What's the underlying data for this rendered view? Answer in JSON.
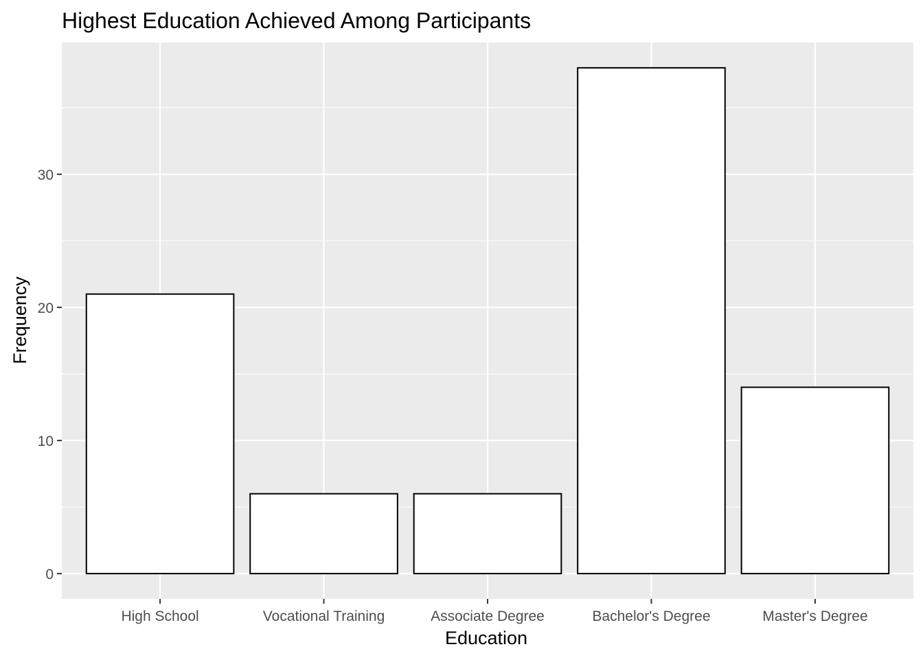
{
  "chart_data": {
    "type": "bar",
    "title": "Highest Education Achieved Among Participants",
    "xlabel": "Education",
    "ylabel": "Frequency",
    "categories": [
      "High School",
      "Vocational Training",
      "Associate Degree",
      "Bachelor's Degree",
      "Master's Degree"
    ],
    "values": [
      21,
      6,
      6,
      38,
      14
    ],
    "ylim": [
      -1.9,
      39.9
    ],
    "yticks": [
      0,
      10,
      20,
      30
    ],
    "grid": true,
    "legend": "none",
    "colors": {
      "panel_background": "#ebebeb",
      "grid": "#ffffff",
      "bar_fill": "#ffffff",
      "bar_outline": "#000000",
      "tick_text": "#4d4d4d",
      "tick_mark": "#333333",
      "title_text": "#000000"
    }
  }
}
